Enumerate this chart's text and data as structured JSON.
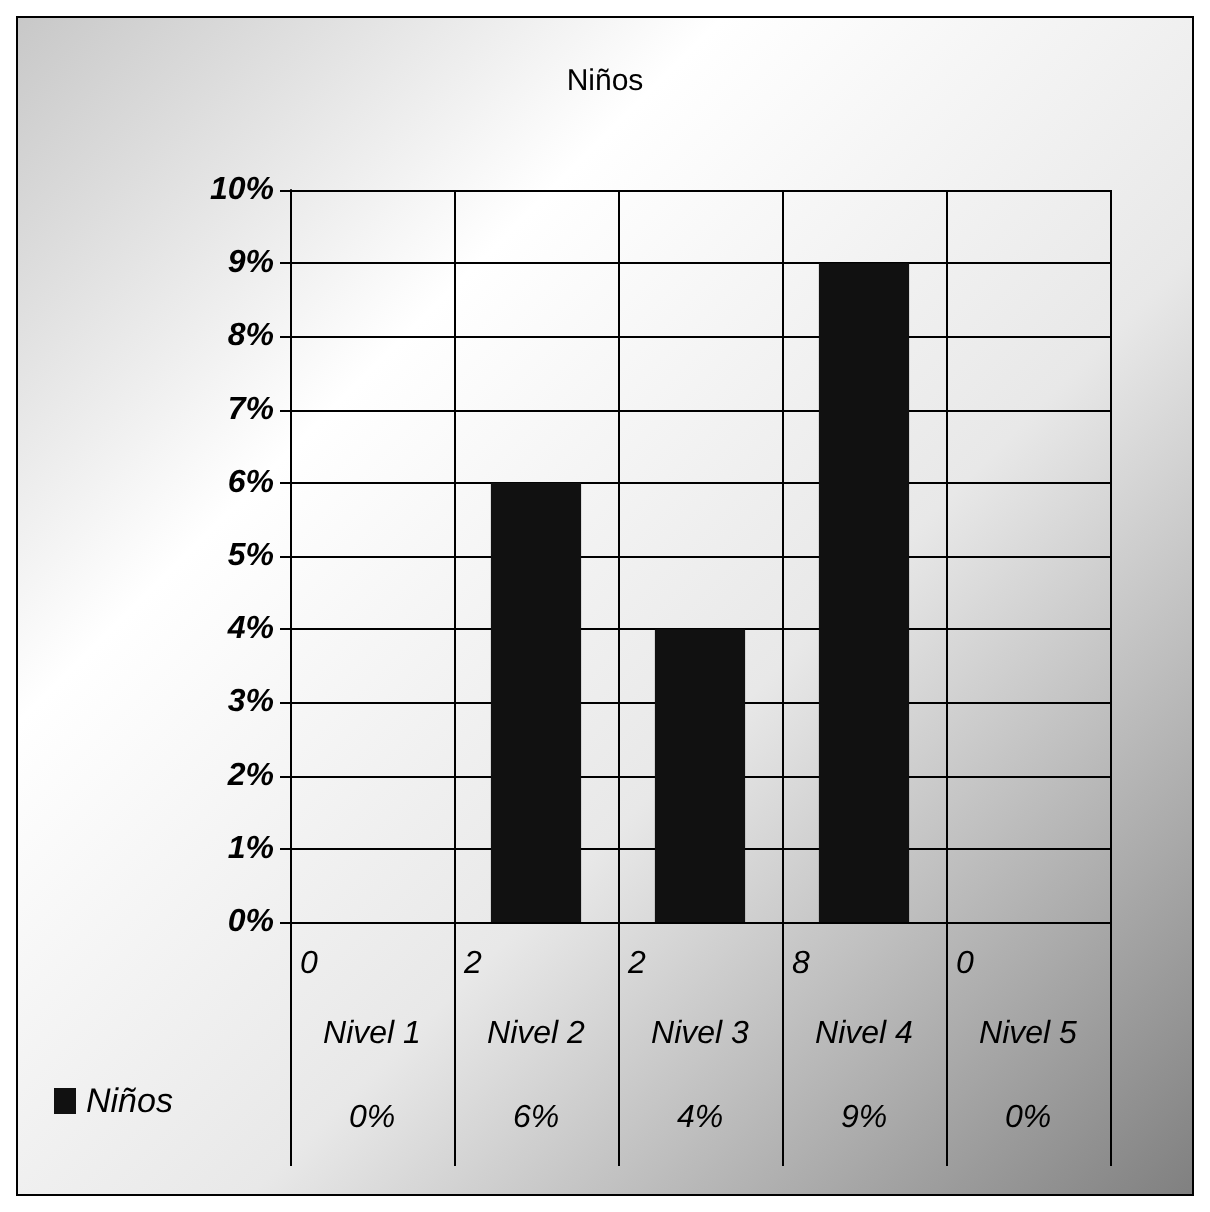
{
  "chart_data": {
    "type": "bar",
    "title": "Niños",
    "categories": [
      "Nivel 1",
      "Nivel 2",
      "Nivel 3",
      "Nivel 4",
      "Nivel 5"
    ],
    "series": [
      {
        "name": "Niños",
        "color": "#111111",
        "values": [
          0,
          6,
          4,
          9,
          0
        ],
        "value_labels": [
          "0%",
          "6%",
          "4%",
          "9%",
          "0%"
        ]
      }
    ],
    "annotations": [
      "0",
      "2",
      "2",
      "8",
      "0"
    ],
    "ylim": [
      0,
      10
    ],
    "yticks": [
      {
        "value": 0,
        "label": "0%"
      },
      {
        "value": 1,
        "label": "1%"
      },
      {
        "value": 2,
        "label": "2%"
      },
      {
        "value": 3,
        "label": "3%"
      },
      {
        "value": 4,
        "label": "4%"
      },
      {
        "value": 5,
        "label": "5%"
      },
      {
        "value": 6,
        "label": "6%"
      },
      {
        "value": 7,
        "label": "7%"
      },
      {
        "value": 8,
        "label": "8%"
      },
      {
        "value": 9,
        "label": "9%"
      },
      {
        "value": 10,
        "label": "10%"
      }
    ],
    "grid": true,
    "legend": "bottom left"
  }
}
